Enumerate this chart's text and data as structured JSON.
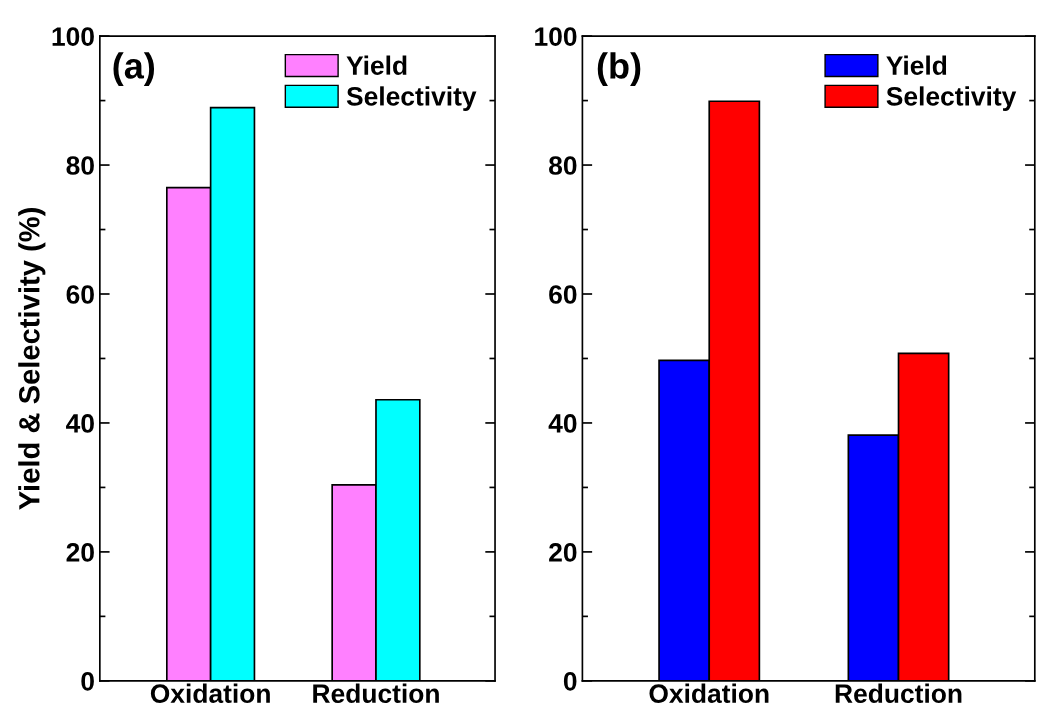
{
  "chart_data": [
    {
      "type": "bar",
      "title": "(a)",
      "ylabel": "Yield & Selectivity (%)",
      "categories": [
        "Oxidation",
        "Reduction"
      ],
      "series": [
        {
          "name": "Yield",
          "color": "#ff80ff",
          "values": [
            76.5,
            30.4
          ]
        },
        {
          "name": "Selectivity",
          "color": "#00ffff",
          "values": [
            88.9,
            43.6
          ]
        }
      ],
      "ylim": [
        0,
        100
      ],
      "yticks": [
        0,
        20,
        40,
        60,
        80,
        100
      ],
      "legend": "top right",
      "grid": false
    },
    {
      "type": "bar",
      "title": "(b)",
      "categories": [
        "Oxidation",
        "Reduction"
      ],
      "series": [
        {
          "name": "Yield",
          "color": "#0000ff",
          "values": [
            49.7,
            38.1
          ]
        },
        {
          "name": "Selectivity",
          "color": "#ff0000",
          "values": [
            89.9,
            50.8
          ]
        }
      ],
      "ylim": [
        0,
        100
      ],
      "yticks": [
        0,
        20,
        40,
        60,
        80,
        100
      ],
      "legend": "top right",
      "grid": false
    }
  ]
}
